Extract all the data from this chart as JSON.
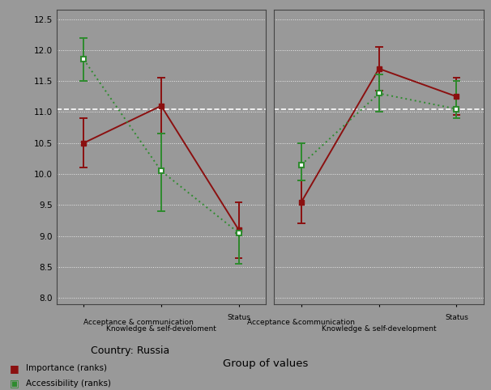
{
  "fig_bg_color": "#999999",
  "plot_bg_color": "#999999",
  "russia": {
    "x_labels_bottom": [
      "Acceptance & communication",
      "Knowledge & self-develoment",
      "Status"
    ],
    "importance_mean": [
      10.5,
      11.1,
      9.1
    ],
    "importance_ci_low": [
      10.1,
      10.65,
      8.65
    ],
    "importance_ci_high": [
      10.9,
      11.55,
      9.55
    ],
    "accessibility_mean": [
      11.85,
      10.05,
      9.05
    ],
    "accessibility_ci_low": [
      11.5,
      9.4,
      8.55
    ],
    "accessibility_ci_high": [
      12.2,
      10.65,
      9.05
    ],
    "subtitle": "Country: Russia"
  },
  "turkey": {
    "x_labels_bottom": [
      "Acceptance &communication",
      "Knowledge & self-development",
      "Status"
    ],
    "importance_mean": [
      9.55,
      11.7,
      11.25
    ],
    "importance_ci_low": [
      9.2,
      11.35,
      10.95
    ],
    "importance_ci_high": [
      9.9,
      12.05,
      11.55
    ],
    "accessibility_mean": [
      10.15,
      11.3,
      11.05
    ],
    "accessibility_ci_low": [
      9.9,
      11.0,
      10.9
    ],
    "accessibility_ci_high": [
      10.5,
      11.6,
      11.5
    ]
  },
  "importance_color": "#8B1010",
  "accessibility_color": "#2E8B2E",
  "hline_y": 11.05,
  "ylim": [
    7.9,
    12.65
  ],
  "yticks": [
    8.0,
    8.5,
    9.0,
    9.5,
    10.0,
    10.5,
    11.0,
    11.5,
    12.0,
    12.5
  ],
  "xlabel": "Group of values",
  "legend_importance": "Importance (ranks)",
  "legend_accessibility": "Accessibility (ranks)"
}
